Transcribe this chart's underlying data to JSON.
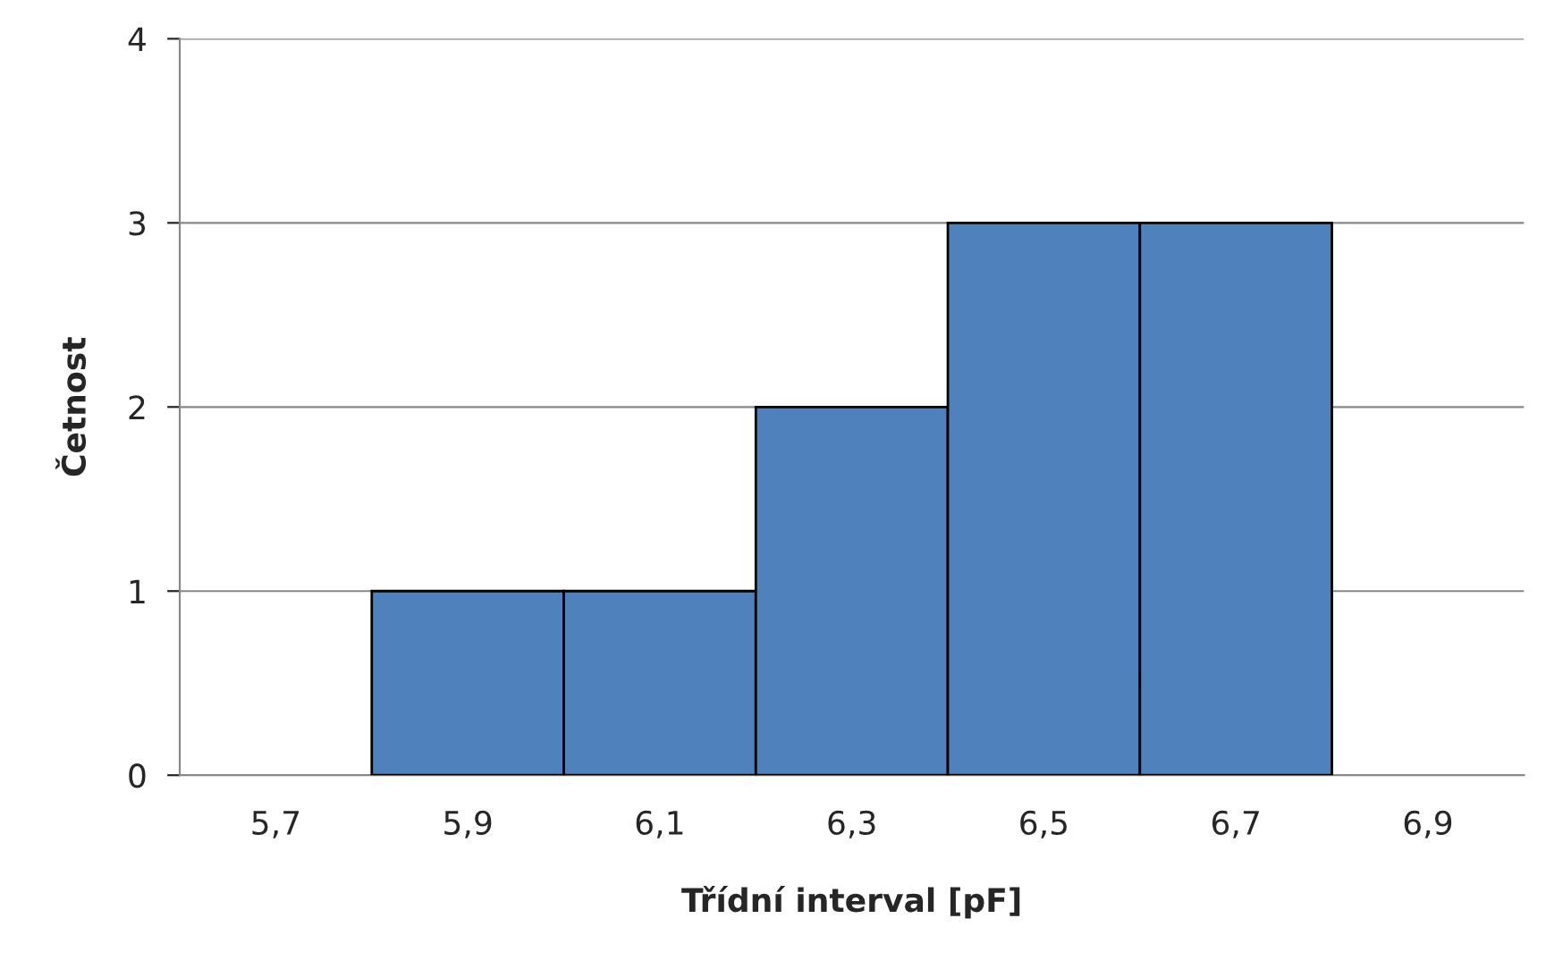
{
  "chart_data": {
    "type": "bar",
    "xlabel": "Třídní interval [pF]",
    "ylabel": "Četnost",
    "categories": [
      "5,7",
      "5,9",
      "6,1",
      "6,3",
      "6,5",
      "6,7",
      "6,9"
    ],
    "values": [
      0,
      1,
      1,
      2,
      3,
      3,
      0
    ],
    "color": "#4f81bd",
    "ylim": [
      0,
      4
    ],
    "yticks": [
      0,
      1,
      2,
      3,
      4
    ],
    "grid": "y",
    "legend": false
  }
}
